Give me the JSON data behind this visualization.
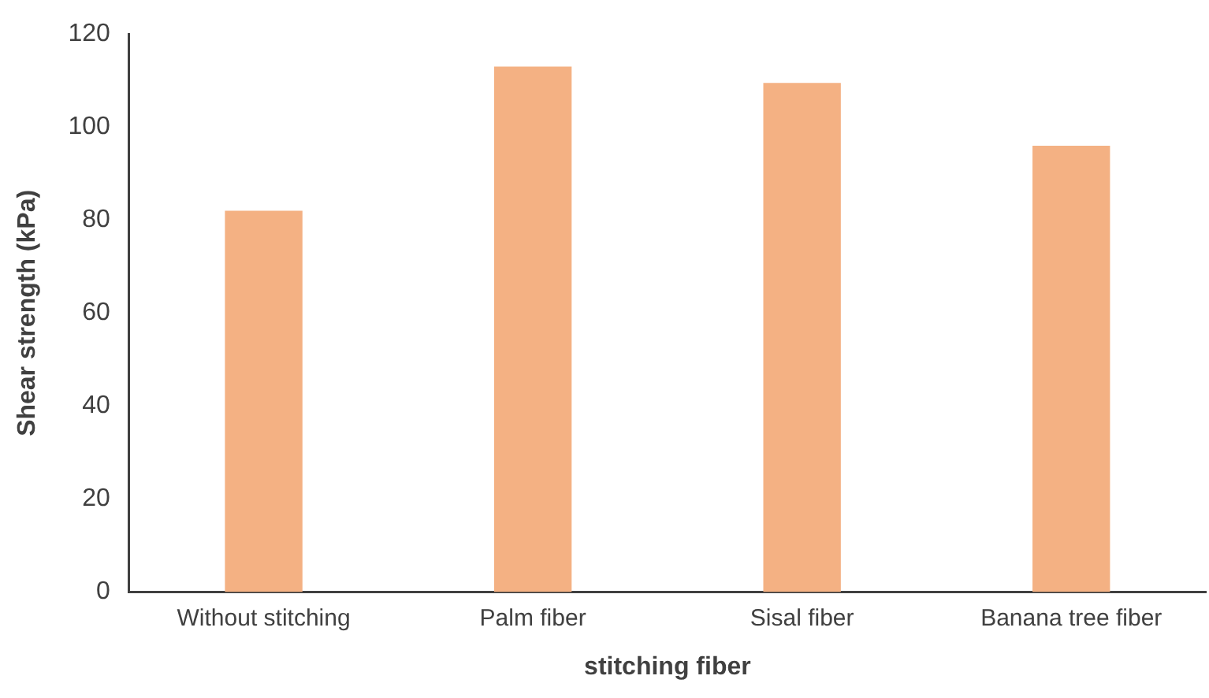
{
  "chart_data": {
    "type": "bar",
    "xlabel": "stitching fiber",
    "ylabel": "Shear strength (kPa)",
    "categories": [
      "Without stitching",
      "Palm fiber",
      "Sisal fiber",
      "Banana tree fiber"
    ],
    "values": [
      82,
      113,
      109.5,
      96
    ],
    "color": "#f4b183",
    "ylim": [
      0,
      120
    ],
    "yticks": [
      0,
      20,
      40,
      60,
      80,
      100,
      120
    ],
    "grid": false,
    "legend": false
  }
}
